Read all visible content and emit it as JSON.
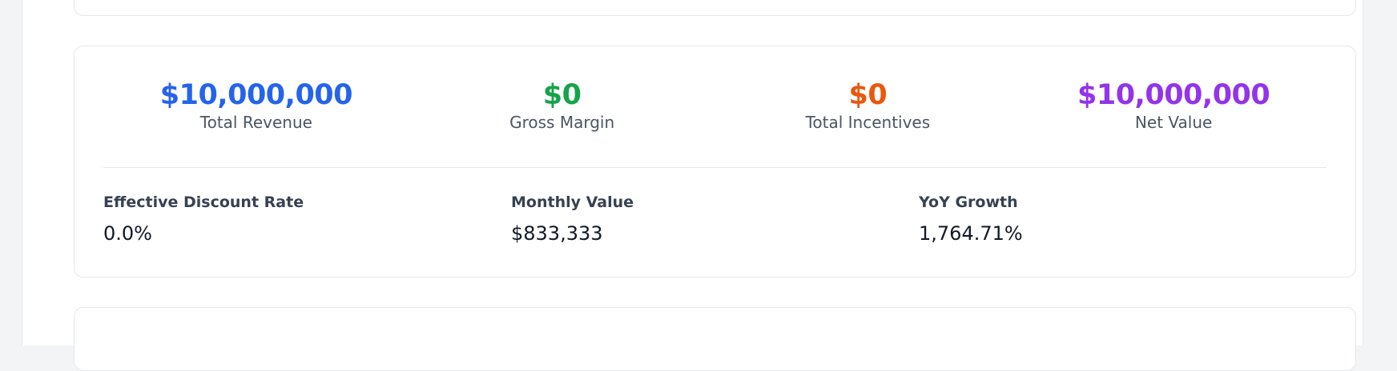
{
  "summary": {
    "kpis": [
      {
        "value": "$10,000,000",
        "label": "Total Revenue",
        "color": "#2563eb"
      },
      {
        "value": "$0",
        "label": "Gross Margin",
        "color": "#16a34a"
      },
      {
        "value": "$0",
        "label": "Total Incentives",
        "color": "#ea580c"
      },
      {
        "value": "$10,000,000",
        "label": "Net Value",
        "color": "#9333ea"
      }
    ],
    "metrics": [
      {
        "label": "Effective Discount Rate",
        "value": "0.0%"
      },
      {
        "label": "Monthly Value",
        "value": "$833,333"
      },
      {
        "label": "YoY Growth",
        "value": "1,764.71%"
      }
    ]
  }
}
